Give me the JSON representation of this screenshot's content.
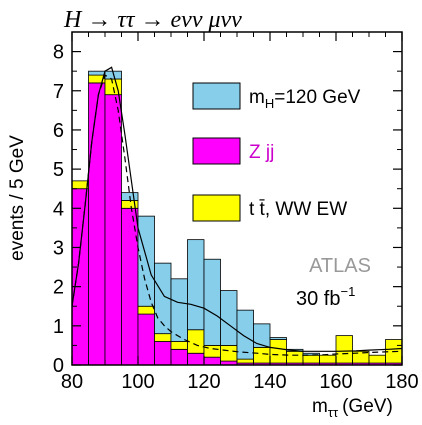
{
  "chart_data": {
    "type": "bar",
    "stacked": true,
    "title": "H → ττ → eνν μνν",
    "xlabel": "m",
    "xlabel_subscript": "ττ",
    "xlabel_unit": "(GeV)",
    "ylabel": "events / 5 GeV",
    "xlim": [
      80,
      180
    ],
    "ylim": [
      0,
      8.5
    ],
    "x_ticks": [
      80,
      100,
      120,
      140,
      160,
      180
    ],
    "y_ticks": [
      0,
      1,
      2,
      3,
      4,
      5,
      6,
      7,
      8
    ],
    "bin_width": 5,
    "bin_low_edges": [
      80,
      85,
      90,
      95,
      100,
      105,
      110,
      115,
      120,
      125,
      130,
      135,
      140,
      145,
      150,
      155,
      160,
      165,
      170,
      175
    ],
    "series": [
      {
        "name": "Z jj",
        "color": "#ff00ff",
        "values": [
          4.5,
          7.2,
          6.9,
          4.0,
          1.3,
          0.6,
          0.4,
          0.3,
          0.2,
          0.1,
          0.05,
          0.05,
          0.05,
          0.05,
          0.05,
          0.05,
          0.05,
          0.05,
          0.05,
          0.05
        ]
      },
      {
        "name": "t t̄, WW EW",
        "color": "#ffff00",
        "values": [
          0.2,
          0.2,
          0.4,
          0.2,
          0.2,
          0.2,
          0.2,
          0.6,
          0.3,
          0.4,
          0.1,
          0.4,
          0.6,
          0.3,
          0.2,
          0.2,
          0.7,
          0.3,
          0.2,
          0.6
        ]
      },
      {
        "name": "mH=120 GeV",
        "color": "#87ceeb",
        "values": [
          0.0,
          0.1,
          0.2,
          0.2,
          2.3,
          1.8,
          1.6,
          2.3,
          2.2,
          1.4,
          1.25,
          0.6,
          0.05,
          0.05,
          0.05,
          0.0,
          0.0,
          0.0,
          0.0,
          0.0
        ]
      }
    ],
    "fit_curves": [
      {
        "name": "signal+background fit",
        "style": "solid",
        "x": [
          80,
          82,
          84,
          86,
          88,
          90,
          92,
          94,
          96,
          98,
          100,
          104,
          108,
          112,
          116,
          120,
          124,
          128,
          132,
          136,
          140,
          146,
          150,
          156,
          160,
          166,
          170,
          176,
          180
        ],
        "y": [
          1.5,
          2.6,
          4.1,
          5.7,
          6.9,
          7.5,
          7.6,
          7.0,
          5.9,
          4.7,
          3.5,
          2.3,
          1.75,
          1.6,
          1.55,
          1.45,
          1.25,
          1.0,
          0.75,
          0.55,
          0.45,
          0.38,
          0.35,
          0.35,
          0.35,
          0.36,
          0.38,
          0.4,
          0.42
        ]
      },
      {
        "name": "background fit",
        "style": "dashed",
        "x": [
          80,
          82,
          84,
          86,
          88,
          90,
          92,
          94,
          96,
          98,
          100,
          102,
          104,
          106,
          108,
          110,
          114,
          118,
          122,
          126,
          130,
          136,
          140,
          146,
          150,
          156,
          160,
          166,
          170,
          176,
          180
        ],
        "y": [
          1.5,
          2.6,
          4.1,
          5.7,
          6.9,
          7.4,
          7.3,
          6.5,
          5.3,
          4.0,
          3.0,
          2.2,
          1.6,
          1.2,
          1.0,
          0.85,
          0.65,
          0.5,
          0.42,
          0.38,
          0.34,
          0.3,
          0.27,
          0.25,
          0.25,
          0.26,
          0.28,
          0.3,
          0.32,
          0.34,
          0.35
        ]
      }
    ],
    "legend": [
      {
        "label_main": "m",
        "label_sub": "H",
        "label_rest": "=120 GeV",
        "color": "#87ceeb"
      },
      {
        "label_main": "Z jj",
        "label_sub": "",
        "label_rest": "",
        "color": "#ff00ff"
      },
      {
        "label_main": "t t̄, WW EW",
        "label_sub": "",
        "label_rest": "",
        "color": "#ffff00"
      }
    ],
    "annotations": {
      "experiment": "ATLAS",
      "luminosity": "30 fb",
      "luminosity_exp": "−1"
    },
    "colors": {
      "text_magenta": "#cc00cc",
      "text_gray": "#999999"
    }
  }
}
